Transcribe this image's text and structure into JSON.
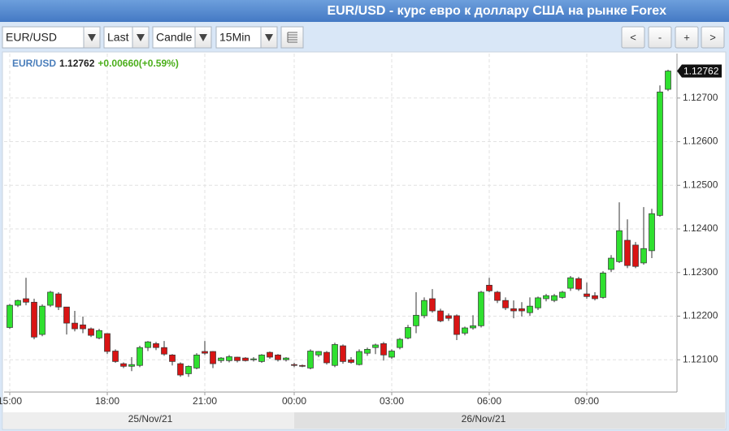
{
  "title": "EUR/USD - курс евро к доллару США на рынке Forex",
  "toolbar": {
    "selects": [
      "EUR/USD",
      "Last",
      "Candle",
      "15Min"
    ],
    "buttons": [
      "<",
      "-",
      "+",
      ">"
    ]
  },
  "chart_data": {
    "type": "candlestick",
    "header": {
      "symbol": "EUR/USD",
      "last": "1.12762",
      "change": "+0.00660(+0.59%)"
    },
    "up_color": "#2fe02f",
    "down_color": "#d91414",
    "categories": [
      "15:00",
      null,
      null,
      null,
      null,
      null,
      null,
      null,
      null,
      null,
      null,
      null,
      "18:00",
      null,
      null,
      null,
      null,
      null,
      null,
      null,
      null,
      null,
      null,
      null,
      "21:00",
      null,
      null,
      null,
      null,
      null,
      null,
      null,
      null,
      null,
      null,
      "00:00",
      null,
      null,
      null,
      null,
      null,
      null,
      null,
      null,
      null,
      null,
      null,
      "03:00",
      null,
      null,
      null,
      null,
      null,
      null,
      null,
      null,
      null,
      null,
      null,
      "06:00",
      null,
      null,
      null,
      null,
      null,
      null,
      null,
      null,
      null,
      null,
      null,
      "09:00",
      null,
      null,
      null,
      null,
      null,
      null,
      null,
      null,
      null,
      null
    ],
    "open": [
      1.12174,
      1.12225,
      1.1224,
      1.12232,
      1.12158,
      1.12225,
      1.12251,
      1.12221,
      1.12184,
      1.1218,
      1.12171,
      1.1215,
      1.1216,
      1.1212,
      1.12091,
      1.12085,
      1.12087,
      1.12128,
      1.12137,
      1.12128,
      1.12111,
      1.12091,
      1.12068,
      1.12081,
      1.12119,
      1.12119,
      1.12098,
      1.12098,
      1.12106,
      1.12104,
      1.121,
      1.12096,
      1.12117,
      1.12111,
      1.121,
      1.12089,
      1.12087,
      1.12081,
      1.12111,
      1.12117,
      1.12087,
      1.12132,
      1.121,
      1.12089,
      1.12115,
      1.12128,
      1.12137,
      1.12106,
      1.12128,
      1.1215,
      1.12178,
      1.12201,
      1.1224,
      1.12212,
      1.12201,
      1.12201,
      1.12161,
      1.12173,
      1.12178,
      1.12271,
      1.12255,
      1.12236,
      1.12217,
      1.12217,
      1.12208,
      1.12219,
      1.1224,
      1.12236,
      1.12243,
      1.12264,
      1.12286,
      1.12251,
      1.12247,
      1.12243,
      1.12307,
      1.12325,
      1.12374,
      1.12363,
      1.12322,
      1.1235,
      1.12431,
      1.1272
    ],
    "high": [
      1.12228,
      1.12238,
      1.12288,
      1.1224,
      1.12227,
      1.12258,
      1.12255,
      1.12221,
      1.12212,
      1.12199,
      1.12174,
      1.12171,
      1.12161,
      1.12124,
      1.12094,
      1.12106,
      1.12132,
      1.12143,
      1.12141,
      1.12143,
      1.12113,
      1.12094,
      1.12087,
      1.12115,
      1.12143,
      1.1212,
      1.12106,
      1.12111,
      1.12107,
      1.12106,
      1.12106,
      1.12113,
      1.12119,
      1.12113,
      1.12106,
      1.12093,
      1.12089,
      1.12124,
      1.1212,
      1.1212,
      1.12139,
      1.12135,
      1.12106,
      1.12124,
      1.12128,
      1.12137,
      1.12141,
      1.12124,
      1.1215,
      1.1218,
      1.12255,
      1.12243,
      1.12262,
      1.12217,
      1.12206,
      1.12204,
      1.12176,
      1.12202,
      1.12258,
      1.12288,
      1.12258,
      1.12243,
      1.12236,
      1.12232,
      1.12243,
      1.12245,
      1.12251,
      1.12251,
      1.12258,
      1.12292,
      1.1229,
      1.12277,
      1.12255,
      1.12303,
      1.1234,
      1.12461,
      1.12422,
      1.1237,
      1.1245,
      1.12446,
      1.12729,
      1.12765
    ],
    "low": [
      1.12171,
      1.12221,
      1.12225,
      1.12147,
      1.12154,
      1.12221,
      1.12214,
      1.12158,
      1.12165,
      1.12161,
      1.12152,
      1.12147,
      1.12113,
      1.12093,
      1.12081,
      1.12074,
      1.12083,
      1.1212,
      1.12122,
      1.12109,
      1.12087,
      1.12061,
      1.12061,
      1.12078,
      1.12111,
      1.12081,
      1.12093,
      1.12094,
      1.12094,
      1.12096,
      1.12096,
      1.12093,
      1.12102,
      1.12096,
      1.12096,
      1.12083,
      1.12083,
      1.12078,
      1.12106,
      1.12089,
      1.12083,
      1.12091,
      1.12091,
      1.12087,
      1.12109,
      1.12113,
      1.12098,
      1.12102,
      1.12124,
      1.12147,
      1.12161,
      1.12195,
      1.12208,
      1.12186,
      1.12189,
      1.12145,
      1.12156,
      1.12169,
      1.12174,
      1.12255,
      1.1223,
      1.12214,
      1.12195,
      1.12199,
      1.12201,
      1.12214,
      1.12234,
      1.12232,
      1.1224,
      1.12258,
      1.12258,
      1.1224,
      1.12236,
      1.1224,
      1.12301,
      1.12322,
      1.1231,
      1.1231,
      1.12318,
      1.12333,
      1.12428,
      1.12716
    ],
    "close": [
      1.12225,
      1.12236,
      1.12232,
      1.12152,
      1.12223,
      1.12255,
      1.12221,
      1.12184,
      1.12171,
      1.12171,
      1.12156,
      1.12167,
      1.12119,
      1.12096,
      1.12085,
      1.12089,
      1.12128,
      1.12141,
      1.12128,
      1.12113,
      1.12096,
      1.12065,
      1.12085,
      1.12111,
      1.12115,
      1.12091,
      1.12104,
      1.12107,
      1.12098,
      1.12098,
      1.12102,
      1.12111,
      1.12106,
      1.121,
      1.12104,
      1.12087,
      1.12085,
      1.1212,
      1.12119,
      1.12093,
      1.12135,
      1.12096,
      1.12094,
      1.12119,
      1.12124,
      1.12134,
      1.12111,
      1.1212,
      1.12147,
      1.12174,
      1.12202,
      1.12236,
      1.12212,
      1.12189,
      1.12195,
      1.12158,
      1.12173,
      1.12178,
      1.12255,
      1.12258,
      1.12236,
      1.12219,
      1.12212,
      1.12212,
      1.12223,
      1.12242,
      1.12247,
      1.12247,
      1.12255,
      1.12288,
      1.12262,
      1.12245,
      1.1224,
      1.12299,
      1.12333,
      1.12396,
      1.12316,
      1.12314,
      1.12355,
      1.12435,
      1.12714,
      1.12762
    ],
    "ylim": [
      1.12026,
      1.12802
    ],
    "yticks": [
      {
        "value": 1.121,
        "label": "1.12100"
      },
      {
        "value": 1.122,
        "label": "1.12200"
      },
      {
        "value": 1.123,
        "label": "1.12300"
      },
      {
        "value": 1.124,
        "label": "1.12400"
      },
      {
        "value": 1.125,
        "label": "1.12500"
      },
      {
        "value": 1.126,
        "label": "1.12600"
      },
      {
        "value": 1.127,
        "label": "1.12700"
      }
    ],
    "grid": true,
    "date_labels": [
      "25/Nov/21",
      "26/Nov/21"
    ]
  }
}
